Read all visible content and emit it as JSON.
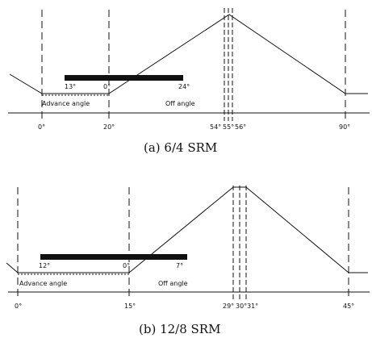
{
  "panels": [
    {
      "caption": "(a) 6/4 SRM",
      "axis_labels": [
        "0°",
        "20°",
        "54°",
        "55°",
        "56°",
        "90°"
      ],
      "bar_labels": [
        "13°",
        "0°",
        "24°"
      ],
      "advance_label": "Advance angle",
      "off_label": "Off angle"
    },
    {
      "caption": "(b) 12/8 SRM",
      "axis_labels": [
        "0°",
        "15°",
        "29°",
        "30°",
        "31°",
        "45°"
      ],
      "bar_labels": [
        "12°",
        "0°",
        "7°"
      ],
      "advance_label": "Advance angle",
      "off_label": "Off angle"
    }
  ]
}
